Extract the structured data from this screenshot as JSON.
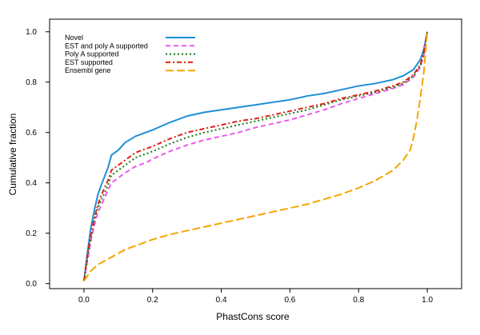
{
  "chart_data": {
    "type": "line",
    "title": "",
    "xlabel": "PhastCons score",
    "ylabel": "Cumulative fraction",
    "xlim": [
      -0.1,
      1.1
    ],
    "ylim": [
      -0.02,
      1.05
    ],
    "x_ticks": [
      "0.0",
      "0.2",
      "0.4",
      "0.6",
      "0.8",
      "1.0"
    ],
    "y_ticks": [
      "0.0",
      "0.2",
      "0.4",
      "0.6",
      "0.8",
      "1.0"
    ],
    "grid": false,
    "legend_position": "top-left",
    "series": [
      {
        "name": "Novel",
        "color": "#1f8fd6",
        "dash": "solid",
        "points": [
          [
            0,
            0.01
          ],
          [
            0.01,
            0.12
          ],
          [
            0.02,
            0.22
          ],
          [
            0.03,
            0.29
          ],
          [
            0.04,
            0.35
          ],
          [
            0.05,
            0.39
          ],
          [
            0.07,
            0.46
          ],
          [
            0.08,
            0.51
          ],
          [
            0.1,
            0.53
          ],
          [
            0.12,
            0.56
          ],
          [
            0.15,
            0.585
          ],
          [
            0.18,
            0.6
          ],
          [
            0.2,
            0.61
          ],
          [
            0.25,
            0.64
          ],
          [
            0.3,
            0.665
          ],
          [
            0.35,
            0.68
          ],
          [
            0.4,
            0.69
          ],
          [
            0.45,
            0.7
          ],
          [
            0.5,
            0.71
          ],
          [
            0.55,
            0.72
          ],
          [
            0.6,
            0.73
          ],
          [
            0.65,
            0.745
          ],
          [
            0.7,
            0.755
          ],
          [
            0.75,
            0.77
          ],
          [
            0.8,
            0.785
          ],
          [
            0.85,
            0.795
          ],
          [
            0.9,
            0.81
          ],
          [
            0.93,
            0.825
          ],
          [
            0.96,
            0.85
          ],
          [
            0.98,
            0.89
          ],
          [
            0.99,
            0.93
          ],
          [
            1.0,
            1.0
          ]
        ]
      },
      {
        "name": "EST and poly A supported",
        "color": "#ee55ee",
        "dash": "dashed",
        "points": [
          [
            0,
            0.01
          ],
          [
            0.01,
            0.09
          ],
          [
            0.02,
            0.17
          ],
          [
            0.03,
            0.23
          ],
          [
            0.04,
            0.28
          ],
          [
            0.05,
            0.31
          ],
          [
            0.07,
            0.37
          ],
          [
            0.08,
            0.4
          ],
          [
            0.1,
            0.42
          ],
          [
            0.12,
            0.44
          ],
          [
            0.15,
            0.465
          ],
          [
            0.18,
            0.48
          ],
          [
            0.2,
            0.495
          ],
          [
            0.25,
            0.525
          ],
          [
            0.3,
            0.55
          ],
          [
            0.35,
            0.57
          ],
          [
            0.4,
            0.585
          ],
          [
            0.45,
            0.6
          ],
          [
            0.5,
            0.62
          ],
          [
            0.55,
            0.635
          ],
          [
            0.6,
            0.65
          ],
          [
            0.65,
            0.67
          ],
          [
            0.7,
            0.69
          ],
          [
            0.75,
            0.715
          ],
          [
            0.8,
            0.735
          ],
          [
            0.85,
            0.755
          ],
          [
            0.9,
            0.775
          ],
          [
            0.93,
            0.79
          ],
          [
            0.96,
            0.82
          ],
          [
            0.98,
            0.86
          ],
          [
            0.99,
            0.91
          ],
          [
            1.0,
            1.0
          ]
        ]
      },
      {
        "name": "Poly A supported",
        "color": "#1a7a1a",
        "dash": "dotted",
        "points": [
          [
            0,
            0.01
          ],
          [
            0.01,
            0.1
          ],
          [
            0.02,
            0.18
          ],
          [
            0.03,
            0.25
          ],
          [
            0.04,
            0.3
          ],
          [
            0.05,
            0.33
          ],
          [
            0.07,
            0.39
          ],
          [
            0.08,
            0.43
          ],
          [
            0.1,
            0.45
          ],
          [
            0.12,
            0.47
          ],
          [
            0.15,
            0.5
          ],
          [
            0.18,
            0.515
          ],
          [
            0.2,
            0.525
          ],
          [
            0.25,
            0.555
          ],
          [
            0.3,
            0.58
          ],
          [
            0.35,
            0.6
          ],
          [
            0.4,
            0.615
          ],
          [
            0.45,
            0.63
          ],
          [
            0.5,
            0.645
          ],
          [
            0.55,
            0.66
          ],
          [
            0.6,
            0.675
          ],
          [
            0.65,
            0.69
          ],
          [
            0.7,
            0.71
          ],
          [
            0.75,
            0.73
          ],
          [
            0.8,
            0.745
          ],
          [
            0.85,
            0.76
          ],
          [
            0.9,
            0.78
          ],
          [
            0.93,
            0.795
          ],
          [
            0.96,
            0.825
          ],
          [
            0.98,
            0.865
          ],
          [
            0.99,
            0.915
          ],
          [
            1.0,
            1.0
          ]
        ]
      },
      {
        "name": "EST supported",
        "color": "#dd2211",
        "dash": "dashdot",
        "points": [
          [
            0,
            0.01
          ],
          [
            0.01,
            0.11
          ],
          [
            0.02,
            0.19
          ],
          [
            0.03,
            0.26
          ],
          [
            0.04,
            0.31
          ],
          [
            0.05,
            0.35
          ],
          [
            0.07,
            0.41
          ],
          [
            0.08,
            0.45
          ],
          [
            0.1,
            0.47
          ],
          [
            0.12,
            0.49
          ],
          [
            0.15,
            0.52
          ],
          [
            0.18,
            0.535
          ],
          [
            0.2,
            0.545
          ],
          [
            0.25,
            0.575
          ],
          [
            0.3,
            0.6
          ],
          [
            0.35,
            0.615
          ],
          [
            0.4,
            0.63
          ],
          [
            0.45,
            0.645
          ],
          [
            0.5,
            0.655
          ],
          [
            0.55,
            0.67
          ],
          [
            0.6,
            0.685
          ],
          [
            0.65,
            0.7
          ],
          [
            0.7,
            0.715
          ],
          [
            0.75,
            0.735
          ],
          [
            0.8,
            0.75
          ],
          [
            0.85,
            0.765
          ],
          [
            0.9,
            0.785
          ],
          [
            0.93,
            0.8
          ],
          [
            0.96,
            0.83
          ],
          [
            0.98,
            0.87
          ],
          [
            0.99,
            0.92
          ],
          [
            1.0,
            1.0
          ]
        ]
      },
      {
        "name": "Ensembl gene",
        "color": "#f5a500",
        "dash": "longdash",
        "points": [
          [
            0,
            0.01
          ],
          [
            0.01,
            0.03
          ],
          [
            0.02,
            0.05
          ],
          [
            0.04,
            0.075
          ],
          [
            0.06,
            0.09
          ],
          [
            0.08,
            0.105
          ],
          [
            0.1,
            0.12
          ],
          [
            0.12,
            0.135
          ],
          [
            0.15,
            0.15
          ],
          [
            0.2,
            0.175
          ],
          [
            0.25,
            0.195
          ],
          [
            0.3,
            0.21
          ],
          [
            0.35,
            0.225
          ],
          [
            0.4,
            0.24
          ],
          [
            0.45,
            0.255
          ],
          [
            0.5,
            0.27
          ],
          [
            0.55,
            0.285
          ],
          [
            0.6,
            0.3
          ],
          [
            0.65,
            0.315
          ],
          [
            0.7,
            0.335
          ],
          [
            0.75,
            0.355
          ],
          [
            0.8,
            0.38
          ],
          [
            0.85,
            0.41
          ],
          [
            0.9,
            0.45
          ],
          [
            0.93,
            0.49
          ],
          [
            0.95,
            0.53
          ],
          [
            0.96,
            0.58
          ],
          [
            0.97,
            0.65
          ],
          [
            0.98,
            0.74
          ],
          [
            0.99,
            0.84
          ],
          [
            1.0,
            1.0
          ]
        ]
      }
    ]
  }
}
